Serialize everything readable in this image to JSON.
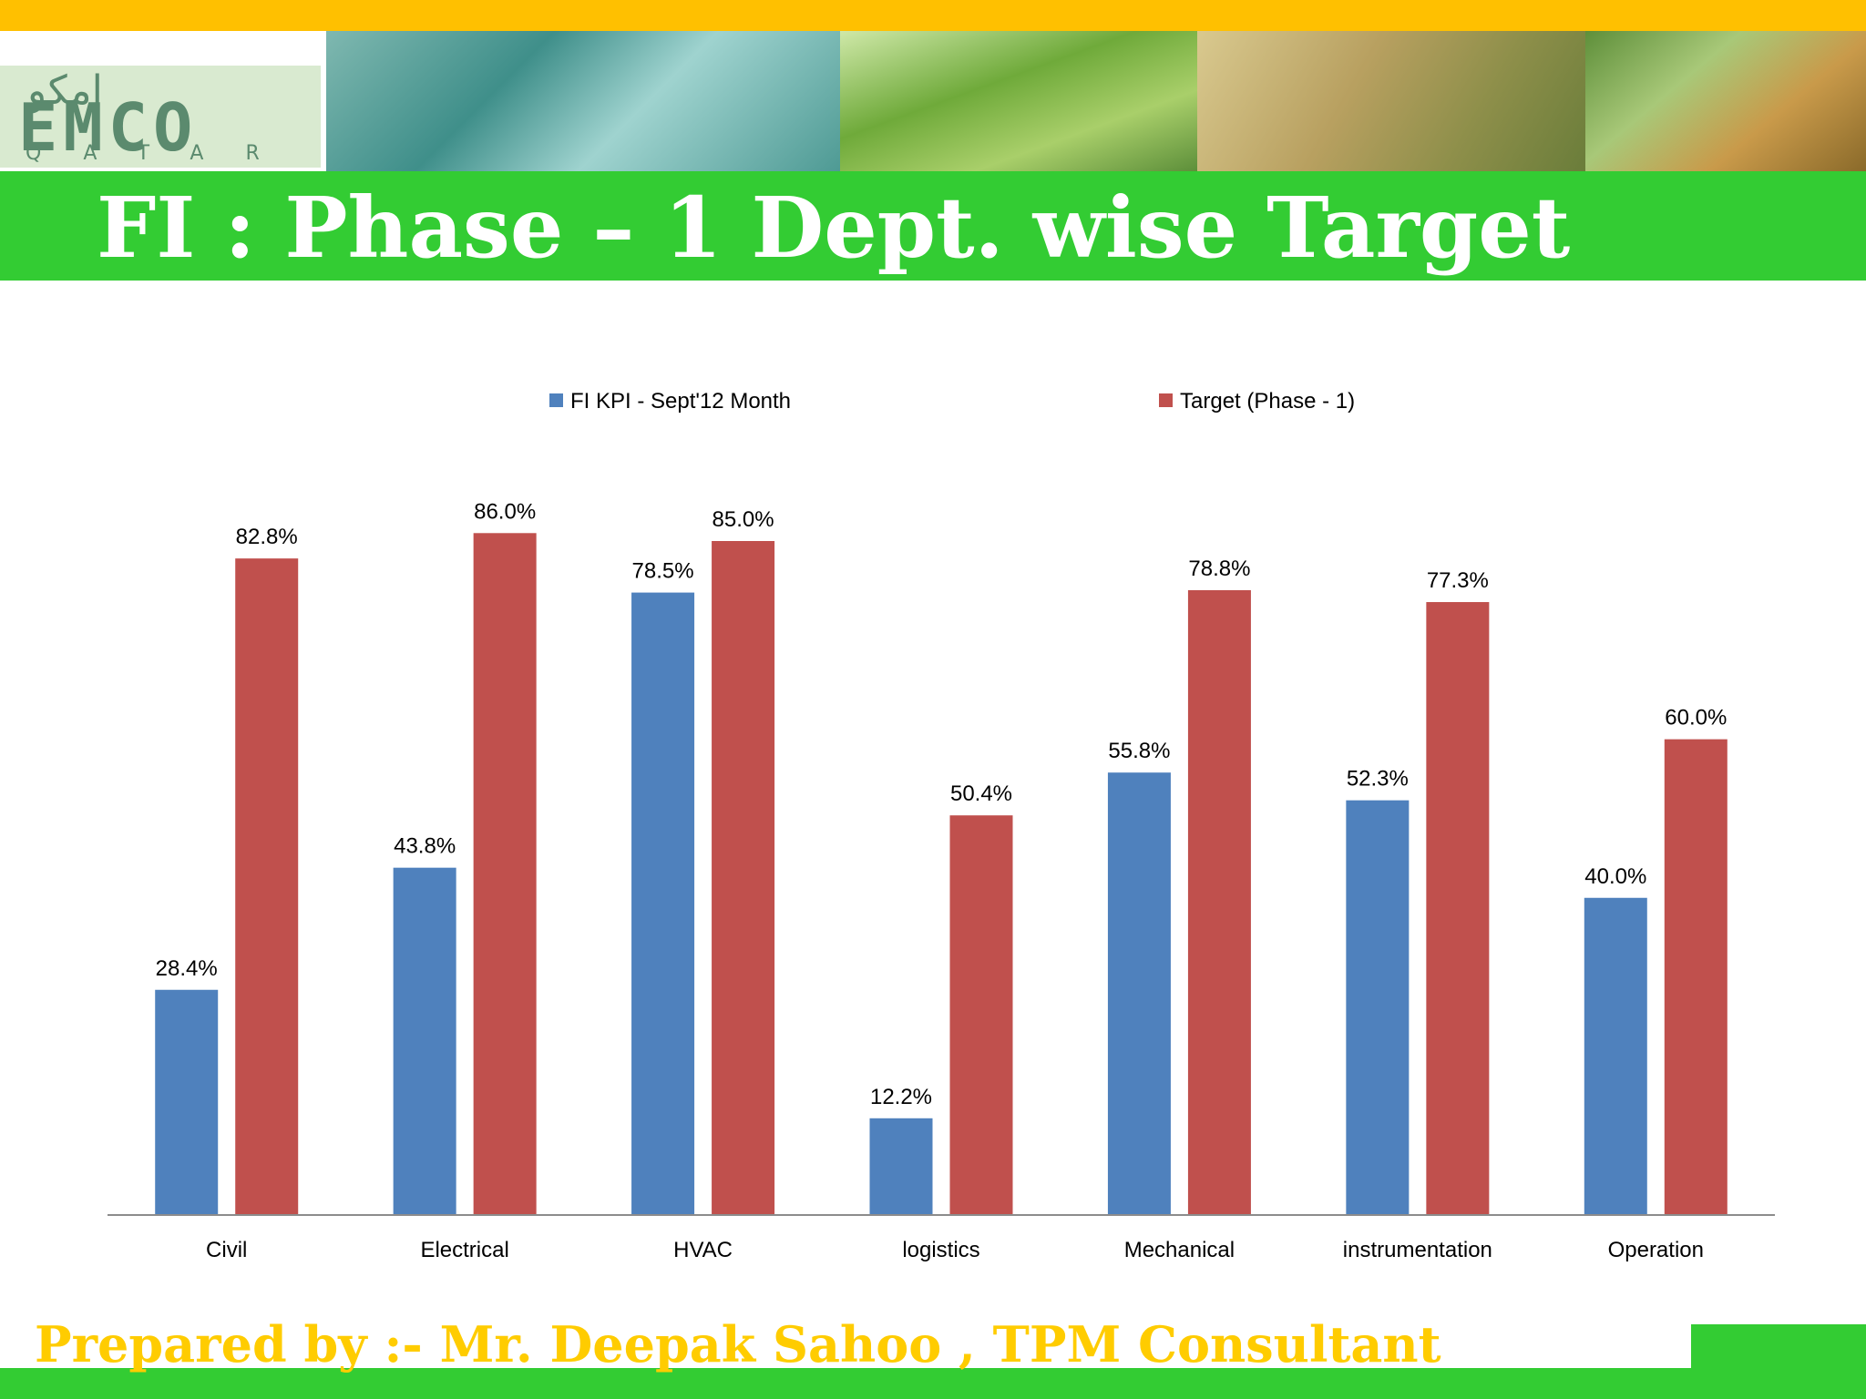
{
  "slide": {
    "title": "FI : Phase – 1 Dept. wise Target",
    "footer": "Prepared by :- Mr. Deepak  Sahoo , TPM Consultant"
  },
  "logo": {
    "arabic": "امكو",
    "name": "EMCO",
    "sub": "QATAR"
  },
  "colors": {
    "top_strip": "#ffc000",
    "green_bar": "#33cc33",
    "series_kpi": "#4f81bd",
    "series_target": "#c0504d",
    "footer_text": "#ffcc00"
  },
  "chart_data": {
    "type": "bar",
    "categories": [
      "Civil",
      "Electrical",
      "HVAC",
      "logistics",
      "Mechanical",
      "instrumentation",
      "Operation"
    ],
    "series": [
      {
        "name": "FI KPI - Sept'12 Month",
        "values": [
          28.4,
          43.8,
          78.5,
          12.2,
          55.8,
          52.3,
          40.0
        ],
        "labels": [
          "28.4%",
          "43.8%",
          "78.5%",
          "12.2%",
          "55.8%",
          "52.3%",
          "40.0%"
        ]
      },
      {
        "name": "Target (Phase - 1)",
        "values": [
          82.8,
          86.0,
          85.0,
          50.4,
          78.8,
          77.3,
          60.0
        ],
        "labels": [
          "82.8%",
          "86.0%",
          "85.0%",
          "50.4%",
          "78.8%",
          "77.3%",
          "60.0%"
        ]
      }
    ],
    "ylim": [
      0,
      100
    ],
    "grid": false,
    "legend": "top",
    "data_labels": true
  }
}
